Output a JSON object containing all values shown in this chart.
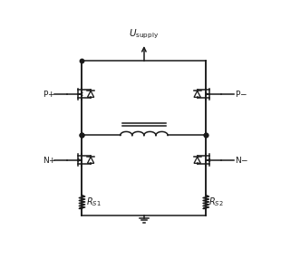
{
  "bg_color": "#ffffff",
  "line_color": "#1a1a1a",
  "text_color": "#1a1a1a",
  "fig_width": 3.1,
  "fig_height": 2.96,
  "dpi": 100
}
